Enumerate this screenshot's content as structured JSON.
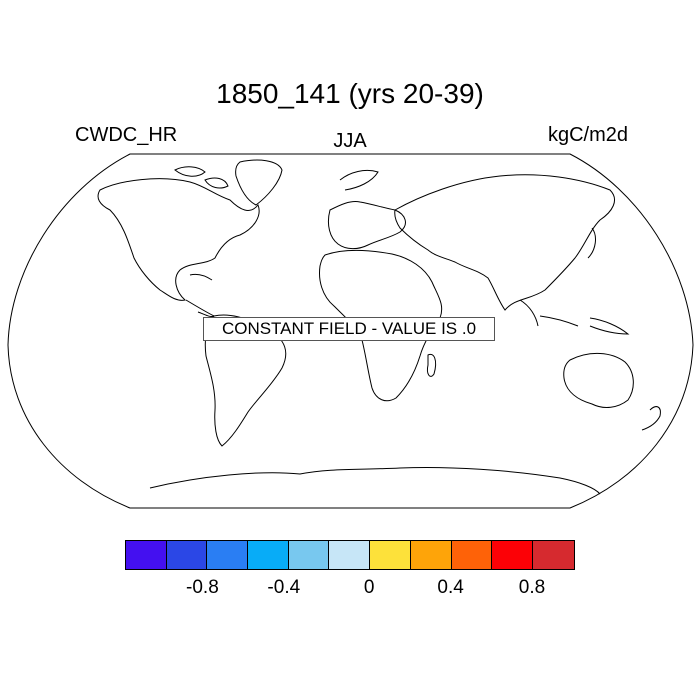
{
  "title": "1850_141 (yrs 20-39)",
  "variable": "CWDC_HR",
  "season": "JJA",
  "units": "kgC/m2d",
  "notice": "CONSTANT FIELD - VALUE IS .0",
  "colorbar": {
    "colors": [
      "#4410f0",
      "#2b47e6",
      "#2a7ef3",
      "#08acf7",
      "#78c8ef",
      "#c7e6f7",
      "#fde13a",
      "#fea409",
      "#fe6208",
      "#fc0106",
      "#d62a2f"
    ],
    "tick_labels": [
      "-0.8",
      "-0.4",
      "0",
      "0.4",
      "0.8"
    ]
  }
}
